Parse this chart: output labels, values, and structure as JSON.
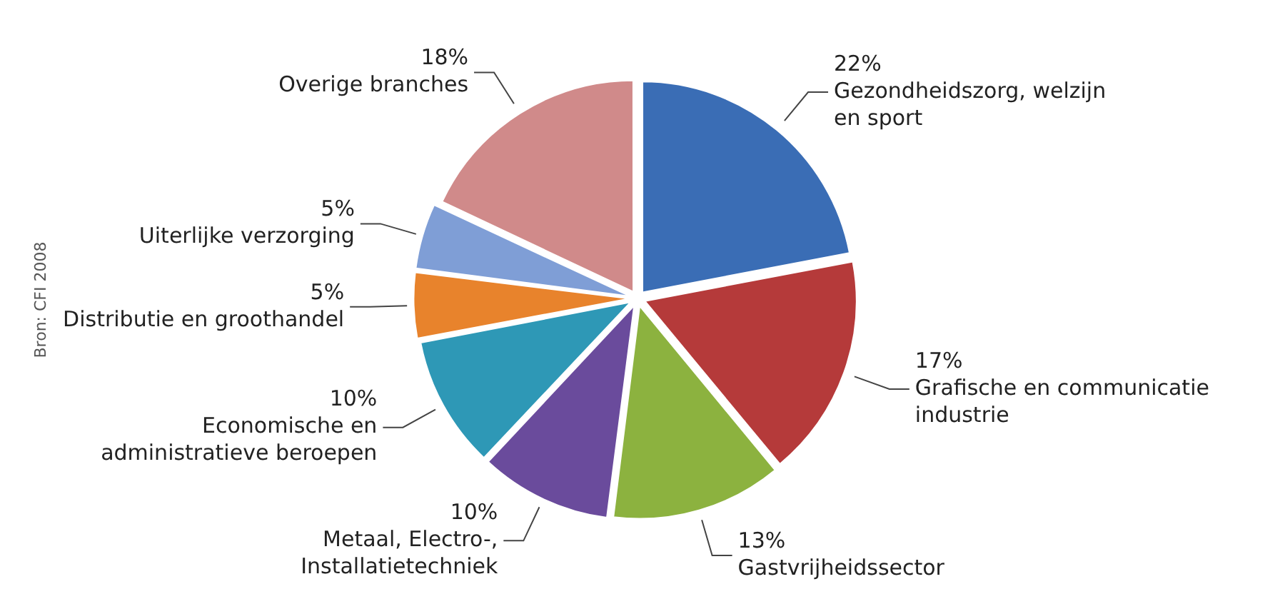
{
  "chart_data": {
    "type": "pie",
    "categories": [
      "Gezondheidszorg, welzijn en sport",
      "Grafische en communicatie industrie",
      "Gastvrijheidssector",
      "Metaal, Electro-, Installatietechniek",
      "Economische en administratieve beroepen",
      "Distributie en groothandel",
      "Uiterlijke verzorging",
      "Overige branches"
    ],
    "values": [
      22,
      17,
      13,
      10,
      10,
      5,
      5,
      18
    ],
    "colors": [
      "#3a6db5",
      "#b53a3a",
      "#8cb23f",
      "#6a4b9c",
      "#2e98b6",
      "#e8832c",
      "#7f9ed6",
      "#d08a8a"
    ],
    "value_labels": [
      "22%",
      "17%",
      "13%",
      "10%",
      "10%",
      "5%",
      "5%",
      "18%"
    ],
    "legend": false,
    "annotations": [
      "Bron: CFI 2008"
    ]
  }
}
